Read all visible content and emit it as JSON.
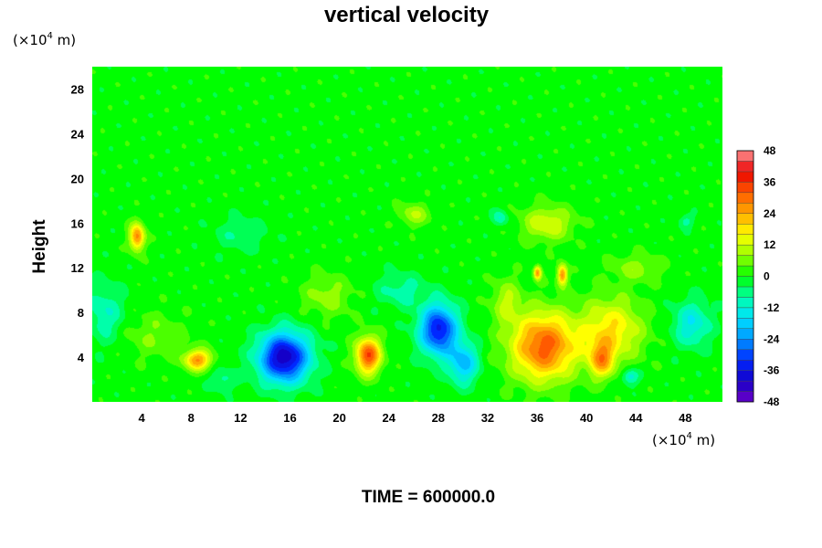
{
  "chart_data": {
    "type": "heatmap",
    "title": "vertical velocity",
    "ylabel": "Height",
    "y_unit": {
      "base": "(×10",
      "exp": "4",
      "rest": " m)"
    },
    "x_unit": {
      "base": "(×10",
      "exp": "4",
      "rest": " m)"
    },
    "xlim": [
      0,
      51
    ],
    "ylim": [
      0,
      30
    ],
    "x_ticks": [
      4,
      8,
      12,
      16,
      20,
      24,
      28,
      32,
      36,
      40,
      44,
      48
    ],
    "y_ticks": [
      4,
      8,
      12,
      16,
      20,
      24,
      28
    ],
    "colorbar": {
      "range": [
        -48,
        48
      ],
      "step": 4,
      "ticks": [
        48,
        36,
        24,
        12,
        0,
        -12,
        -24,
        -36,
        -48
      ]
    },
    "features": [
      {
        "x": 15.5,
        "y": 4.0,
        "w": -42,
        "sx": 2.0,
        "sy": 2.2
      },
      {
        "x": 28.0,
        "y": 6.5,
        "w": -36,
        "sx": 1.5,
        "sy": 2.2
      },
      {
        "x": 30.0,
        "y": 3.5,
        "w": -20,
        "sx": 1.2,
        "sy": 1.8
      },
      {
        "x": 22.3,
        "y": 4.2,
        "w": 34,
        "sx": 1.0,
        "sy": 1.6
      },
      {
        "x": 8.5,
        "y": 3.8,
        "w": 26,
        "sx": 1.1,
        "sy": 0.9
      },
      {
        "x": 3.6,
        "y": 14.8,
        "w": 28,
        "sx": 0.6,
        "sy": 1.2
      },
      {
        "x": 36.5,
        "y": 5.0,
        "w": 32,
        "sx": 2.6,
        "sy": 3.0
      },
      {
        "x": 41.2,
        "y": 3.8,
        "w": 22,
        "sx": 1.0,
        "sy": 1.6
      },
      {
        "x": 42.0,
        "y": 6.5,
        "w": 18,
        "sx": 2.5,
        "sy": 2.8
      },
      {
        "x": 38.0,
        "y": 11.4,
        "w": 28,
        "sx": 0.4,
        "sy": 0.9
      },
      {
        "x": 36.0,
        "y": 11.6,
        "w": 26,
        "sx": 0.3,
        "sy": 0.6
      },
      {
        "x": 48.5,
        "y": 7.0,
        "w": -14,
        "sx": 1.5,
        "sy": 2.0
      },
      {
        "x": 1.0,
        "y": 8.0,
        "w": -10,
        "sx": 1.5,
        "sy": 2.5
      },
      {
        "x": 43.5,
        "y": 2.3,
        "w": -14,
        "sx": 0.7,
        "sy": 0.7
      },
      {
        "x": 10.5,
        "y": 2.0,
        "w": -8,
        "sx": 1.0,
        "sy": 1.0
      },
      {
        "x": 26.0,
        "y": 16.8,
        "w": 10,
        "sx": 1.2,
        "sy": 1.0
      },
      {
        "x": 36.8,
        "y": 16.0,
        "w": 14,
        "sx": 2.0,
        "sy": 1.5
      },
      {
        "x": 33.0,
        "y": 16.5,
        "w": -10,
        "sx": 0.6,
        "sy": 0.7
      },
      {
        "x": 48.0,
        "y": 16.2,
        "w": -8,
        "sx": 0.6,
        "sy": 0.6
      },
      {
        "x": 12.0,
        "y": 15.0,
        "w": -6,
        "sx": 2.0,
        "sy": 1.5
      },
      {
        "x": 19.0,
        "y": 9.5,
        "w": 8,
        "sx": 2.0,
        "sy": 1.8
      },
      {
        "x": 25.0,
        "y": 10.0,
        "w": -8,
        "sx": 2.0,
        "sy": 1.5
      },
      {
        "x": 44.0,
        "y": 12.0,
        "w": 8,
        "sx": 2.0,
        "sy": 1.2
      },
      {
        "x": 5.0,
        "y": 6.0,
        "w": 6,
        "sx": 2.5,
        "sy": 2.0
      },
      {
        "x": 33.5,
        "y": 9.0,
        "w": 10,
        "sx": 1.2,
        "sy": 2.0
      }
    ],
    "footer": "TIME = 600000.0"
  }
}
